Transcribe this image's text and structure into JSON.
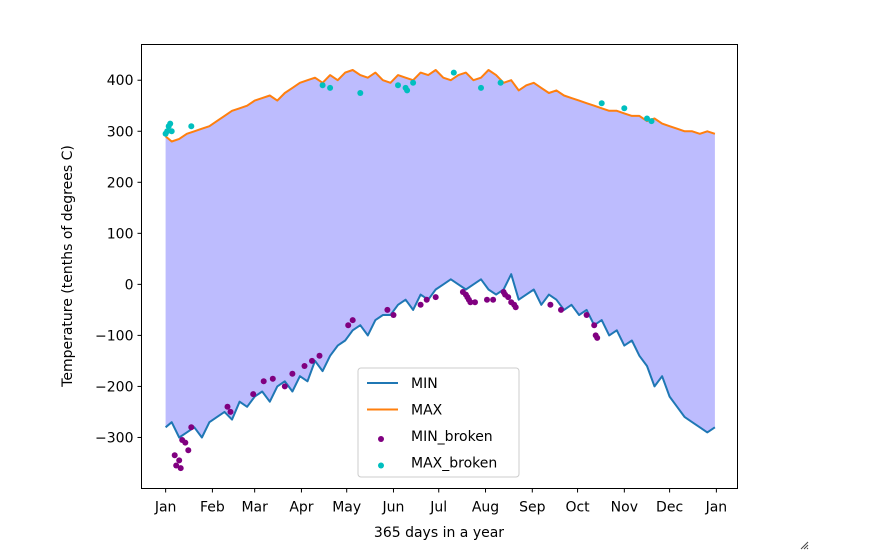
{
  "chart_data": {
    "type": "line",
    "xlabel": "365 days in a year",
    "ylabel": "Temperature (tenths of degrees C)",
    "xlim": [
      -15,
      380
    ],
    "ylim": [
      -400,
      470
    ],
    "x_ticks": [
      {
        "x": 1,
        "label": "Jan"
      },
      {
        "x": 32,
        "label": "Feb"
      },
      {
        "x": 60,
        "label": "Mar"
      },
      {
        "x": 91,
        "label": "Apr"
      },
      {
        "x": 121,
        "label": "May"
      },
      {
        "x": 152,
        "label": "Jun"
      },
      {
        "x": 182,
        "label": "Jul"
      },
      {
        "x": 213,
        "label": "Aug"
      },
      {
        "x": 244,
        "label": "Sep"
      },
      {
        "x": 274,
        "label": "Oct"
      },
      {
        "x": 305,
        "label": "Nov"
      },
      {
        "x": 335,
        "label": "Dec"
      },
      {
        "x": 366,
        "label": "Jan"
      }
    ],
    "y_ticks": [
      -300,
      -200,
      -100,
      0,
      100,
      200,
      300,
      400
    ],
    "y_tick_labels": [
      "−300",
      "−200",
      "−100",
      "0",
      "100",
      "200",
      "300",
      "400"
    ],
    "fill_color": "#bdbcfe",
    "legend_position": "lower center",
    "series": [
      {
        "name": "MIN",
        "kind": "line",
        "color": "#1f77b4",
        "x": [
          1,
          5,
          10,
          15,
          20,
          25,
          30,
          35,
          40,
          45,
          50,
          55,
          60,
          65,
          70,
          75,
          80,
          85,
          90,
          95,
          100,
          105,
          110,
          115,
          120,
          125,
          130,
          135,
          140,
          145,
          150,
          155,
          160,
          165,
          170,
          175,
          180,
          185,
          190,
          195,
          200,
          205,
          210,
          215,
          220,
          225,
          230,
          235,
          240,
          245,
          250,
          255,
          260,
          265,
          270,
          275,
          280,
          285,
          290,
          295,
          300,
          305,
          310,
          315,
          320,
          325,
          330,
          335,
          340,
          345,
          350,
          355,
          360,
          365
        ],
        "y": [
          -280,
          -270,
          -300,
          -290,
          -280,
          -300,
          -270,
          -260,
          -250,
          -265,
          -230,
          -240,
          -220,
          -210,
          -230,
          -200,
          -190,
          -210,
          -180,
          -190,
          -150,
          -170,
          -140,
          -120,
          -110,
          -90,
          -80,
          -100,
          -70,
          -60,
          -60,
          -40,
          -30,
          -50,
          -20,
          -30,
          -10,
          0,
          10,
          0,
          -10,
          0,
          10,
          -10,
          -20,
          -10,
          20,
          -30,
          -20,
          -10,
          -40,
          -20,
          -30,
          -50,
          -40,
          -60,
          -50,
          -80,
          -70,
          -100,
          -90,
          -120,
          -110,
          -140,
          -160,
          -200,
          -180,
          -220,
          -240,
          -260,
          -270,
          -280,
          -290,
          -280
        ]
      },
      {
        "name": "MAX",
        "kind": "line",
        "color": "#ff7f0e",
        "x": [
          1,
          5,
          10,
          15,
          20,
          25,
          30,
          35,
          40,
          45,
          50,
          55,
          60,
          65,
          70,
          75,
          80,
          85,
          90,
          95,
          100,
          105,
          110,
          115,
          120,
          125,
          130,
          135,
          140,
          145,
          150,
          155,
          160,
          165,
          170,
          175,
          180,
          185,
          190,
          195,
          200,
          205,
          210,
          215,
          220,
          225,
          230,
          235,
          240,
          245,
          250,
          255,
          260,
          265,
          270,
          275,
          280,
          285,
          290,
          295,
          300,
          305,
          310,
          315,
          320,
          325,
          330,
          335,
          340,
          345,
          350,
          355,
          360,
          365
        ],
        "y": [
          290,
          280,
          285,
          295,
          300,
          305,
          310,
          320,
          330,
          340,
          345,
          350,
          360,
          365,
          370,
          360,
          375,
          385,
          395,
          400,
          405,
          395,
          410,
          400,
          415,
          420,
          410,
          405,
          415,
          400,
          395,
          410,
          405,
          400,
          415,
          410,
          420,
          405,
          400,
          410,
          415,
          400,
          405,
          420,
          410,
          395,
          400,
          380,
          390,
          395,
          385,
          375,
          380,
          370,
          365,
          360,
          355,
          350,
          345,
          340,
          340,
          335,
          330,
          330,
          320,
          325,
          315,
          310,
          305,
          300,
          300,
          295,
          300,
          295
        ]
      },
      {
        "name": "MIN_broken",
        "kind": "scatter",
        "color": "#800080",
        "x": [
          7,
          8,
          10,
          11,
          12,
          14,
          16,
          18,
          42,
          44,
          59,
          66,
          72,
          80,
          85,
          93,
          98,
          103,
          122,
          125,
          148,
          152,
          170,
          174,
          180,
          198,
          200,
          201,
          202,
          203,
          206,
          214,
          218,
          225,
          226,
          228,
          230,
          232,
          233,
          256,
          263,
          280,
          285,
          286,
          287
        ],
        "y": [
          -335,
          -355,
          -345,
          -360,
          -305,
          -310,
          -325,
          -280,
          -240,
          -250,
          -215,
          -190,
          -185,
          -200,
          -175,
          -160,
          -150,
          -140,
          -80,
          -70,
          -50,
          -60,
          -40,
          -30,
          -25,
          -15,
          -20,
          -25,
          -30,
          -35,
          -35,
          -30,
          -30,
          -15,
          -20,
          -25,
          -35,
          -40,
          -45,
          -40,
          -50,
          -60,
          -80,
          -100,
          -105
        ]
      },
      {
        "name": "MAX_broken",
        "kind": "scatter",
        "color": "#00bfbf",
        "x": [
          1,
          2,
          3,
          4,
          5,
          18,
          105,
          110,
          130,
          155,
          160,
          161,
          165,
          192,
          210,
          223,
          290,
          305,
          320,
          323
        ],
        "y": [
          295,
          300,
          310,
          315,
          300,
          310,
          390,
          385,
          375,
          390,
          385,
          380,
          395,
          415,
          385,
          395,
          355,
          345,
          325,
          320
        ]
      }
    ]
  }
}
